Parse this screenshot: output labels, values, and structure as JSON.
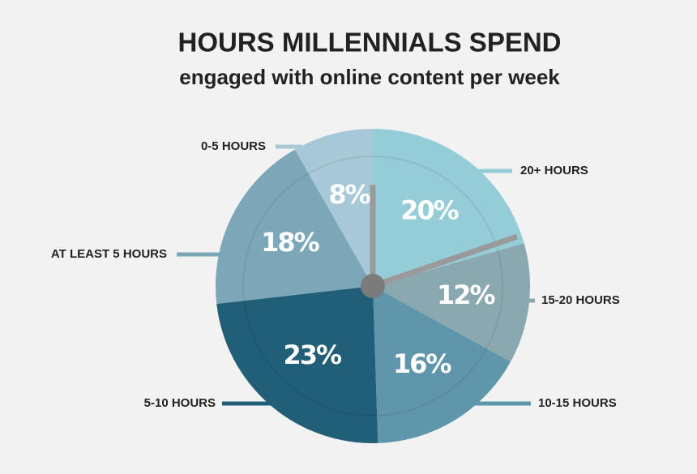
{
  "chart_data": {
    "type": "pie",
    "title": "HOURS MILLENNIALS SPEND",
    "subtitle": "engaged with online content per week",
    "categories": [
      "20+ HOURS",
      "15-20 HOURS",
      "10-15 HOURS",
      "5-10 HOURS",
      "AT LEAST 5 HOURS",
      "0-5 HOURS"
    ],
    "values": [
      20,
      12,
      16,
      23,
      18,
      8
    ],
    "value_labels": [
      "20%",
      "12%",
      "16%",
      "23%",
      "18%",
      "8%"
    ],
    "colors": [
      "#94ccd7",
      "#8aa8af",
      "#5f96ab",
      "#215e78",
      "#7ba7b9",
      "#a7c8d6"
    ]
  }
}
